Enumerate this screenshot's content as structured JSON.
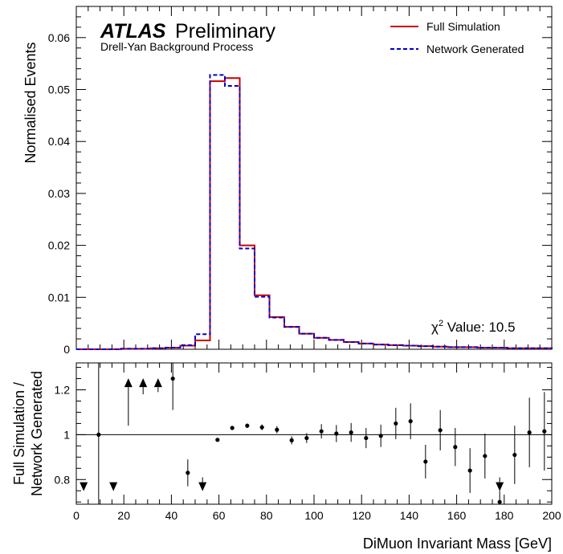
{
  "chart_data": [
    {
      "type": "histogram",
      "panel": "top",
      "atlas_label": "ATLAS",
      "atlas_sublabel": "Preliminary",
      "subtitle": "Drell-Yan Background Process",
      "ylabel": "Normalised Events",
      "xlim": [
        0,
        200
      ],
      "ylim": [
        0,
        0.066
      ],
      "ytick_values": [
        0,
        0.01,
        0.02,
        0.03,
        0.04,
        0.05,
        0.06
      ],
      "ytick_labels": [
        "0",
        "0.01",
        "0.02",
        "0.03",
        "0.04",
        "0.05",
        "0.06"
      ],
      "bin_width": 6.25,
      "bin_lows": [
        0,
        6.25,
        12.5,
        18.75,
        25,
        31.25,
        37.5,
        43.75,
        50,
        56.25,
        62.5,
        68.75,
        75,
        81.25,
        87.5,
        93.75,
        100,
        106.25,
        112.5,
        118.75,
        125,
        131.25,
        137.5,
        143.75,
        150,
        156.25,
        162.5,
        168.75,
        175,
        181.25,
        187.5,
        193.75
      ],
      "series": [
        {
          "name": "Full Simulation",
          "color": "#cc0000",
          "line_style": "solid",
          "values": [
            0.0,
            0.0,
            0.0,
            0.0001,
            0.0001,
            0.0002,
            0.0003,
            0.0007,
            0.0017,
            0.0516,
            0.0522,
            0.02,
            0.0104,
            0.0062,
            0.0043,
            0.003,
            0.0022,
            0.0018,
            0.0014,
            0.0011,
            0.0009,
            0.0008,
            0.0007,
            0.0006,
            0.0005,
            0.0004,
            0.0004,
            0.0003,
            0.0003,
            0.0002,
            0.0002,
            0.0002
          ]
        },
        {
          "name": "Network Generated",
          "color": "#0000cc",
          "line_style": "dashed",
          "values": [
            0.0,
            0.0,
            0.0,
            0.0001,
            0.0001,
            0.0002,
            0.0003,
            0.0008,
            0.0029,
            0.0528,
            0.0507,
            0.0194,
            0.0101,
            0.0061,
            0.0043,
            0.003,
            0.0022,
            0.0018,
            0.0014,
            0.0011,
            0.0009,
            0.0008,
            0.0007,
            0.0006,
            0.0005,
            0.0004,
            0.0004,
            0.0003,
            0.0003,
            0.0002,
            0.0002,
            0.0002
          ]
        }
      ],
      "annotation": {
        "label": "χ",
        "superscript": "2",
        "text": " Value: 10.5"
      },
      "legend_position": "top-right"
    },
    {
      "type": "scatter",
      "panel": "bottom",
      "ylabel_line1": "Full Simulation /",
      "ylabel_line2": "Network Generated",
      "xlabel": "DiMuon Invariant Mass [GeV]",
      "xlim": [
        0,
        200
      ],
      "ylim": [
        0.69,
        1.32
      ],
      "xtick_values": [
        0,
        20,
        40,
        60,
        80,
        100,
        120,
        140,
        160,
        180,
        200
      ],
      "xtick_labels": [
        "0",
        "20",
        "40",
        "60",
        "80",
        "100",
        "120",
        "140",
        "160",
        "180",
        "200"
      ],
      "ytick_values": [
        0.8,
        1.0,
        1.2
      ],
      "ytick_labels": [
        "0.8",
        "1",
        "1.2"
      ],
      "reference_line": 1.0,
      "points": [
        {
          "x": 9.4,
          "y": 1.0,
          "err": 0.35
        },
        {
          "x": 40.6,
          "y": 1.25,
          "err": 0.14
        },
        {
          "x": 46.9,
          "y": 0.83,
          "err": 0.06
        },
        {
          "x": 59.4,
          "y": 0.977,
          "err": 0.006
        },
        {
          "x": 65.6,
          "y": 1.03,
          "err": 0.006
        },
        {
          "x": 71.9,
          "y": 1.04,
          "err": 0.01
        },
        {
          "x": 78.1,
          "y": 1.033,
          "err": 0.013
        },
        {
          "x": 84.4,
          "y": 1.022,
          "err": 0.016
        },
        {
          "x": 90.6,
          "y": 0.975,
          "err": 0.018
        },
        {
          "x": 96.9,
          "y": 0.985,
          "err": 0.022
        },
        {
          "x": 103.1,
          "y": 1.015,
          "err": 0.032
        },
        {
          "x": 109.4,
          "y": 1.005,
          "err": 0.038
        },
        {
          "x": 115.6,
          "y": 1.01,
          "err": 0.042
        },
        {
          "x": 121.9,
          "y": 0.985,
          "err": 0.045
        },
        {
          "x": 128.1,
          "y": 0.995,
          "err": 0.05
        },
        {
          "x": 134.4,
          "y": 1.05,
          "err": 0.07
        },
        {
          "x": 140.6,
          "y": 1.06,
          "err": 0.08
        },
        {
          "x": 146.9,
          "y": 0.88,
          "err": 0.075
        },
        {
          "x": 153.1,
          "y": 1.02,
          "err": 0.09
        },
        {
          "x": 159.4,
          "y": 0.945,
          "err": 0.085
        },
        {
          "x": 165.6,
          "y": 0.84,
          "err": 0.1
        },
        {
          "x": 171.9,
          "y": 0.905,
          "err": 0.1
        },
        {
          "x": 178.1,
          "y": 0.7,
          "err": 0.05
        },
        {
          "x": 184.4,
          "y": 0.91,
          "err": 0.13
        },
        {
          "x": 190.6,
          "y": 1.01,
          "err": 0.155
        },
        {
          "x": 196.9,
          "y": 1.015,
          "err": 0.175
        }
      ],
      "off_scale_markers": [
        {
          "x": 3.1,
          "direction": "down",
          "y": 0.77
        },
        {
          "x": 15.6,
          "direction": "down",
          "y": 0.77
        },
        {
          "x": 21.9,
          "direction": "up",
          "y": 1.23,
          "err_low": 0.19
        },
        {
          "x": 28.1,
          "direction": "up",
          "y": 1.23,
          "err_low": 0.05
        },
        {
          "x": 34.4,
          "direction": "up",
          "y": 1.23,
          "err_low": 0.04
        },
        {
          "x": 53.1,
          "direction": "down",
          "y": 0.77,
          "err_high": 0.04
        },
        {
          "x": 178.1,
          "direction": "down",
          "y": 0.77,
          "err_high": 0.04
        }
      ]
    }
  ]
}
